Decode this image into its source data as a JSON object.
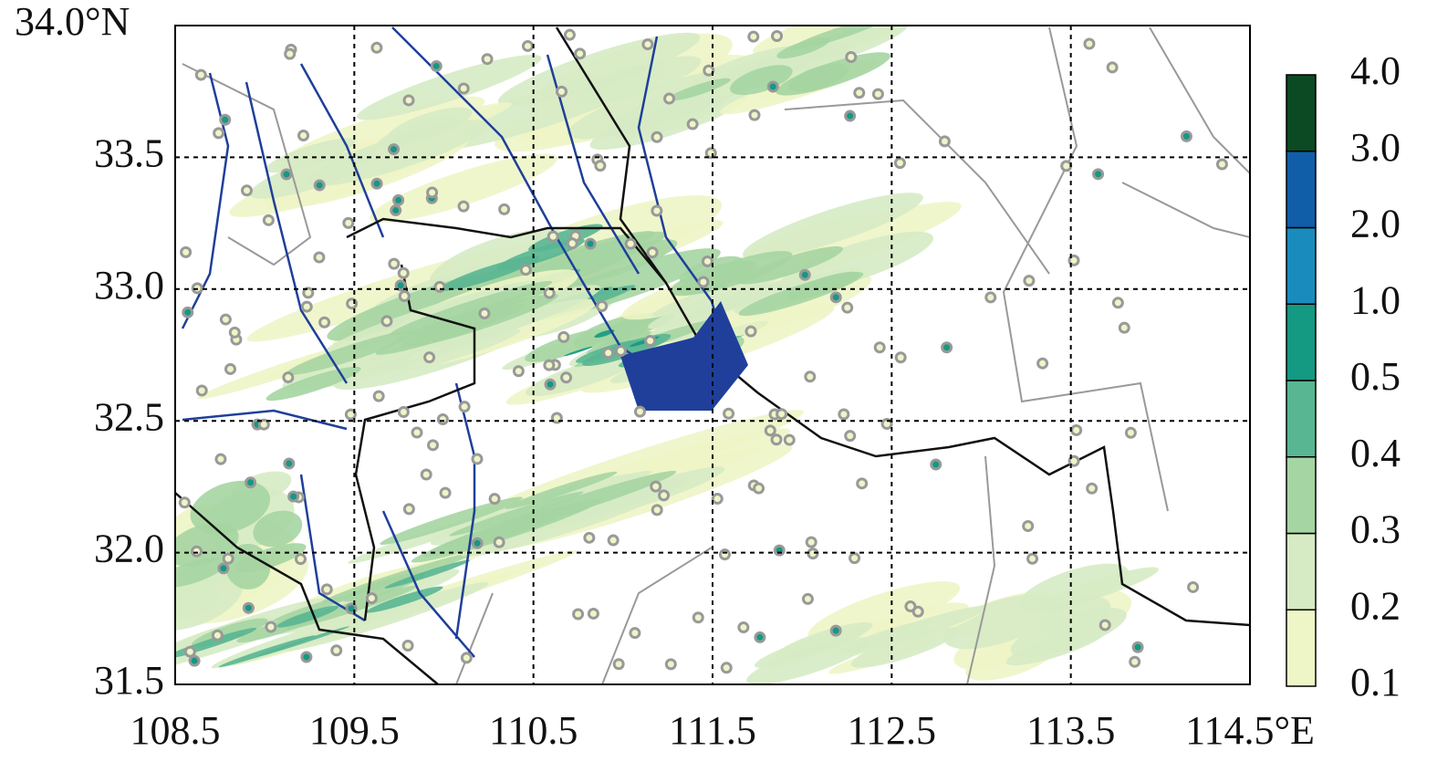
{
  "map": {
    "xlim": [
      108.5,
      114.5
    ],
    "ylim": [
      31.5,
      34.0
    ],
    "xticks": [
      108.5,
      109.5,
      110.5,
      111.5,
      112.5,
      113.5,
      {
        "value": 114.5,
        "label": "114.5°E"
      }
    ],
    "yticks": [
      31.5,
      {
        "value": 32.0,
        "label": "32.0"
      },
      32.5,
      {
        "value": 33.0,
        "label": "33.0"
      },
      33.5,
      {
        "value": 34.0,
        "label": "34.0°N"
      }
    ],
    "grid": true,
    "colorbar": {
      "levels": [
        0.1,
        0.2,
        0.3,
        0.4,
        0.5,
        {
          "value": 1.0,
          "label": "1.0"
        },
        {
          "value": 2.0,
          "label": "2.0"
        },
        {
          "value": 3.0,
          "label": "3.0"
        },
        {
          "value": 4.0,
          "label": "4.0"
        }
      ],
      "colors": [
        "#eef5c6",
        "#d6ebc4",
        "#a5d5a2",
        "#59b692",
        "#149982",
        "#1a8bbd",
        "#115ea8",
        "#0b4a23"
      ]
    }
  }
}
